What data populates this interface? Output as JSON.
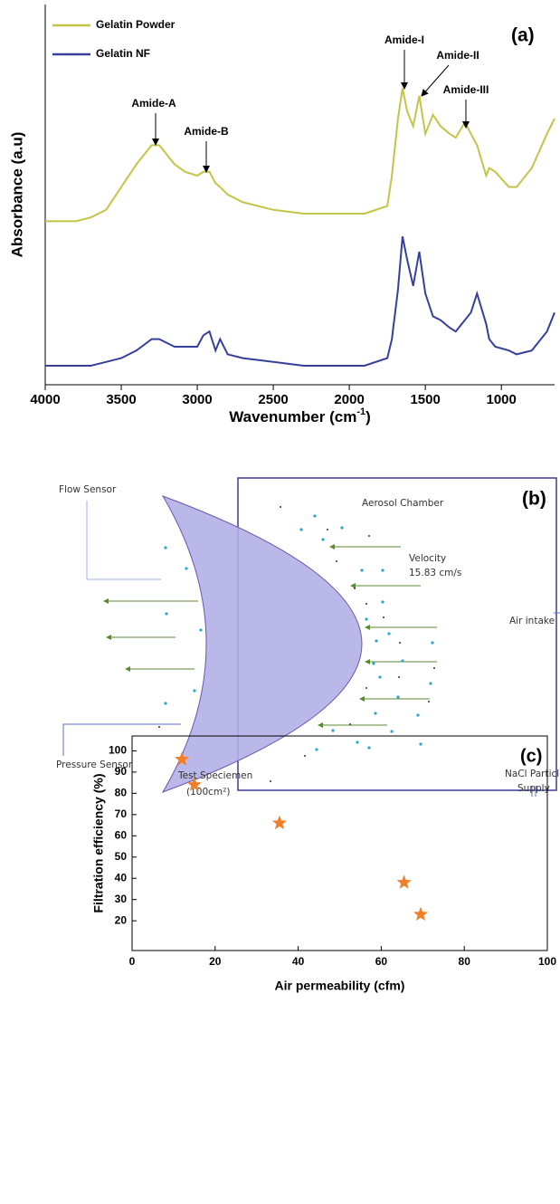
{
  "chart_data": [
    {
      "type": "line",
      "panel_label": "(a)",
      "y_label": "Absorbance (a.u)",
      "x_label": [
        "Wavenumber (cm",
        "-1",
        ")"
      ],
      "legend": "upper left",
      "xlim": [
        4000,
        650
      ],
      "xticks": [
        4000,
        3500,
        3000,
        2500,
        2000,
        1500,
        1000
      ],
      "ylim": [
        0,
        1
      ],
      "annotations": [
        "Amide-A",
        "Amide-B",
        "Amide-I",
        "Amide-II",
        "Amide-III"
      ],
      "x": [
        4000,
        3800,
        3700,
        3600,
        3500,
        3400,
        3300,
        3250,
        3150,
        3080,
        3000,
        2960,
        2920,
        2880,
        2850,
        2800,
        2700,
        2500,
        2300,
        2100,
        1900,
        1750,
        1720,
        1680,
        1650,
        1620,
        1580,
        1540,
        1500,
        1450,
        1400,
        1340,
        1300,
        1240,
        1200,
        1160,
        1100,
        1080,
        1040,
        950,
        900,
        800,
        700,
        650
      ],
      "series": [
        {
          "name": "Gelatin Powder",
          "color": "#c3c448",
          "values": [
            0.43,
            0.43,
            0.44,
            0.46,
            0.52,
            0.58,
            0.63,
            0.63,
            0.58,
            0.56,
            0.55,
            0.56,
            0.56,
            0.53,
            0.52,
            0.5,
            0.48,
            0.46,
            0.45,
            0.45,
            0.45,
            0.47,
            0.55,
            0.7,
            0.78,
            0.72,
            0.68,
            0.76,
            0.66,
            0.71,
            0.68,
            0.66,
            0.65,
            0.69,
            0.66,
            0.63,
            0.55,
            0.57,
            0.56,
            0.52,
            0.52,
            0.57,
            0.66,
            0.7
          ]
        },
        {
          "name": "Gelatin NF",
          "color": "#36409a",
          "values": [
            0.05,
            0.05,
            0.05,
            0.06,
            0.07,
            0.09,
            0.12,
            0.12,
            0.1,
            0.1,
            0.1,
            0.13,
            0.14,
            0.09,
            0.12,
            0.08,
            0.07,
            0.06,
            0.05,
            0.05,
            0.05,
            0.07,
            0.12,
            0.25,
            0.39,
            0.33,
            0.26,
            0.35,
            0.24,
            0.18,
            0.17,
            0.15,
            0.14,
            0.17,
            0.19,
            0.24,
            0.16,
            0.12,
            0.1,
            0.09,
            0.08,
            0.09,
            0.14,
            0.19
          ]
        }
      ]
    },
    {
      "type": "scatter",
      "panel_label": "(c)",
      "x_label": "Air permeability (cfm)",
      "y_label": "Filtration efficiency (%)",
      "xlim": [
        0,
        100
      ],
      "xticks": [
        0,
        20,
        40,
        60,
        80,
        100
      ],
      "ylim": [
        6,
        107
      ],
      "yticks": [
        20,
        30,
        40,
        50,
        60,
        70,
        80,
        90,
        100
      ],
      "marker": "star",
      "color": "#f07f2a",
      "x": [
        12,
        15,
        35.5,
        65.5,
        69.5
      ],
      "values": [
        96,
        84,
        66,
        38,
        23
      ]
    }
  ],
  "diagram": {
    "panel_label": "(b)",
    "labels": [
      "Flow Sensor",
      "Aerosol Chamber",
      "Velocity",
      "15.83 cm/s",
      "Air intake",
      "Pressure Sensor",
      "Test Speciemen",
      "(100cm²)",
      "NaCl Particle",
      "Supply"
    ]
  }
}
